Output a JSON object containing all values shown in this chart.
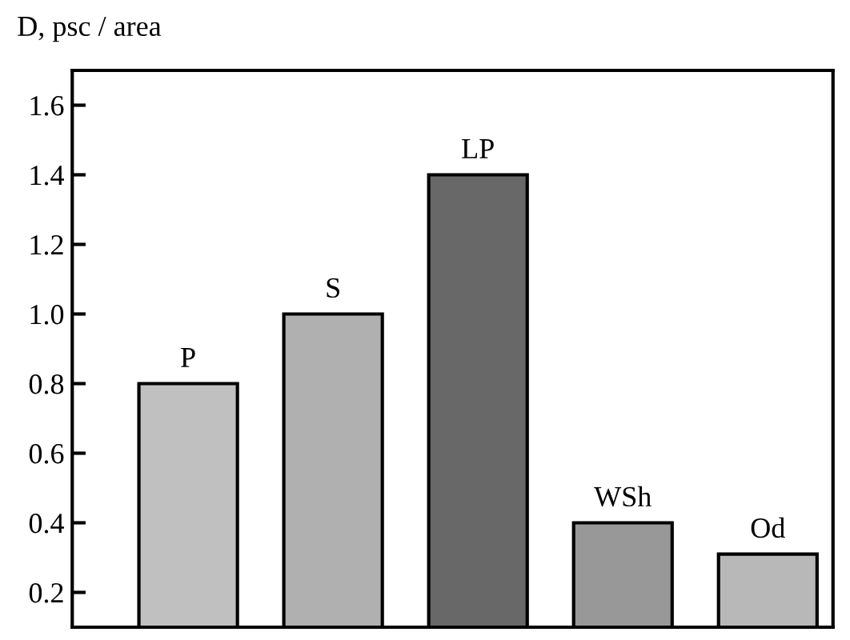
{
  "chart_data": {
    "type": "bar",
    "ylabel": "D, psc / area",
    "categories": [
      "P",
      "S",
      "LP",
      "WSh",
      "Od"
    ],
    "values": [
      0.8,
      1.0,
      1.4,
      0.4,
      0.31
    ],
    "colors": [
      "#c0c0c0",
      "#b0b0b0",
      "#686868",
      "#989898",
      "#b8b8b8"
    ],
    "ylim": [
      0.1,
      1.7
    ],
    "yticks": [
      0.2,
      0.4,
      0.6,
      0.8,
      {
        "value": 1.0,
        "label": "1.0"
      },
      1.2,
      1.4,
      1.6
    ],
    "grid": false
  }
}
